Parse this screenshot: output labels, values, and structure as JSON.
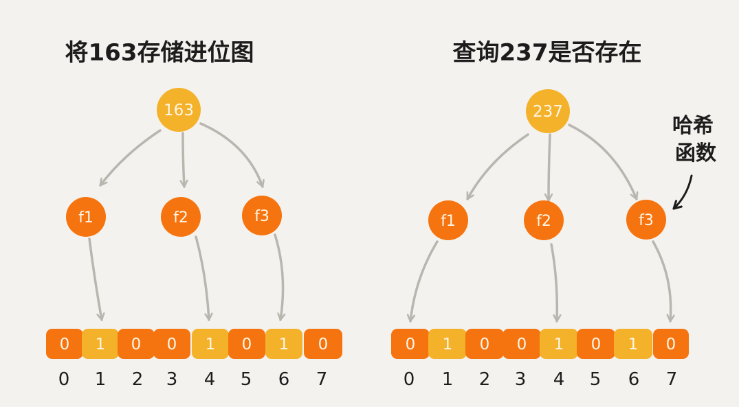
{
  "colors": {
    "background": "#f4f2ee",
    "input_node": "#f4b12a",
    "hash_node": "#f5740f",
    "bit_zero": "#f5740f",
    "bit_one": "#f4b12a",
    "arrow": "#b9b6b0",
    "text_dark": "#1c1c1c",
    "text_light": "#fff6e6"
  },
  "panels": [
    {
      "title": "将163存储进位图",
      "input": "163",
      "hash_functions": [
        "f1",
        "f2",
        "f3"
      ],
      "bit_indices": [
        "0",
        "1",
        "2",
        "3",
        "4",
        "5",
        "6",
        "7"
      ],
      "bits": [
        "0",
        "1",
        "0",
        "0",
        "1",
        "0",
        "1",
        "0"
      ],
      "targets": [
        1,
        4,
        6
      ]
    },
    {
      "title": "查询237是否存在",
      "input": "237",
      "hash_functions": [
        "f1",
        "f2",
        "f3"
      ],
      "bit_indices": [
        "0",
        "1",
        "2",
        "3",
        "4",
        "5",
        "6",
        "7"
      ],
      "bits": [
        "0",
        "1",
        "0",
        "0",
        "1",
        "0",
        "1",
        "0"
      ],
      "targets": [
        0,
        4,
        7
      ]
    }
  ],
  "annotation": {
    "line1": "哈希",
    "line2": "函数",
    "icon": "curved-arrow-icon"
  }
}
